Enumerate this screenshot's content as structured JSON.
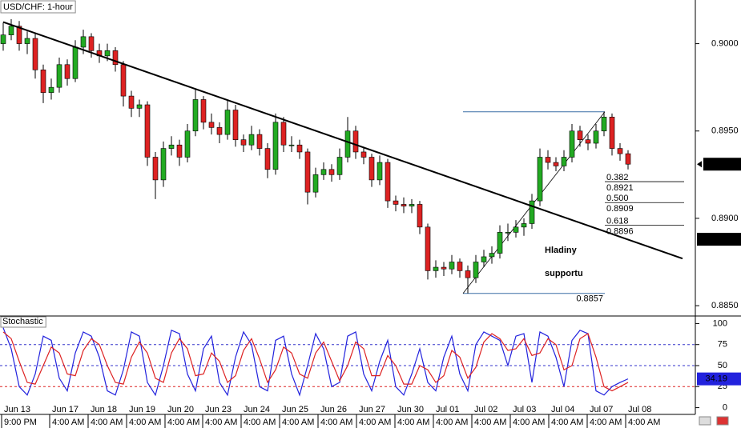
{
  "chart_data": [
    {
      "type": "candlestick",
      "title": "USD/CHF: 1-hour",
      "xlim": [
        -0.4,
        86.4
      ],
      "ylim": [
        0.8845,
        0.9025
      ],
      "yticks": [
        {
          "value": 0.885,
          "label": "0.8850"
        },
        {
          "value": 0.89,
          "label": "0.8900"
        },
        {
          "value": 0.895,
          "label": "0.8950"
        },
        {
          "value": 0.9,
          "label": "0.9000"
        }
      ],
      "up_color": "#22aa22",
      "down_color": "#dd2222",
      "ohlc": [
        [
          0.9,
          0.9012,
          0.8996,
          0.9005
        ],
        [
          0.9005,
          0.9014,
          0.9002,
          0.901
        ],
        [
          0.901,
          0.9013,
          0.8996,
          0.9
        ],
        [
          0.9,
          0.9007,
          0.8994,
          0.9003
        ],
        [
          0.9003,
          0.9006,
          0.898,
          0.8985
        ],
        [
          0.8985,
          0.8988,
          0.8966,
          0.8972
        ],
        [
          0.8972,
          0.898,
          0.8968,
          0.8975
        ],
        [
          0.8975,
          0.8992,
          0.8972,
          0.8988
        ],
        [
          0.8988,
          0.8991,
          0.8976,
          0.898
        ],
        [
          0.898,
          0.9002,
          0.8978,
          0.8998
        ],
        [
          0.8998,
          0.9008,
          0.8994,
          0.9004
        ],
        [
          0.9004,
          0.9006,
          0.8992,
          0.8996
        ],
        [
          0.8996,
          0.9,
          0.8989,
          0.8993
        ],
        [
          0.8993,
          0.9,
          0.899,
          0.8996
        ],
        [
          0.8996,
          0.8998,
          0.8984,
          0.8988
        ],
        [
          0.8988,
          0.899,
          0.8964,
          0.897
        ],
        [
          0.897,
          0.8973,
          0.8958,
          0.8963
        ],
        [
          0.8963,
          0.8968,
          0.8958,
          0.8965
        ],
        [
          0.8965,
          0.8967,
          0.893,
          0.8935
        ],
        [
          0.8935,
          0.8938,
          0.8911,
          0.8922
        ],
        [
          0.8922,
          0.8944,
          0.8918,
          0.894
        ],
        [
          0.894,
          0.8947,
          0.8936,
          0.8942
        ],
        [
          0.8942,
          0.8945,
          0.893,
          0.8935
        ],
        [
          0.8935,
          0.8954,
          0.8932,
          0.895
        ],
        [
          0.895,
          0.8974,
          0.8947,
          0.8968
        ],
        [
          0.8968,
          0.897,
          0.8951,
          0.8955
        ],
        [
          0.8955,
          0.896,
          0.8948,
          0.8952
        ],
        [
          0.8952,
          0.8955,
          0.8943,
          0.8948
        ],
        [
          0.8948,
          0.8968,
          0.8945,
          0.8962
        ],
        [
          0.8962,
          0.8965,
          0.8941,
          0.8945
        ],
        [
          0.8945,
          0.8948,
          0.8938,
          0.8942
        ],
        [
          0.8942,
          0.8953,
          0.8939,
          0.8948
        ],
        [
          0.8948,
          0.8951,
          0.8936,
          0.894
        ],
        [
          0.894,
          0.8943,
          0.8923,
          0.8928
        ],
        [
          0.8928,
          0.896,
          0.8925,
          0.8955
        ],
        [
          0.8955,
          0.8958,
          0.8938,
          0.8942
        ],
        [
          0.8942,
          0.8947,
          0.8938,
          0.8942
        ],
        [
          0.8942,
          0.8945,
          0.8934,
          0.8938
        ],
        [
          0.8938,
          0.894,
          0.8908,
          0.8915
        ],
        [
          0.8915,
          0.8929,
          0.8912,
          0.8925
        ],
        [
          0.8925,
          0.8932,
          0.8922,
          0.8928
        ],
        [
          0.8928,
          0.8931,
          0.8921,
          0.8925
        ],
        [
          0.8925,
          0.894,
          0.8922,
          0.8935
        ],
        [
          0.8935,
          0.8958,
          0.8932,
          0.895
        ],
        [
          0.895,
          0.8953,
          0.8934,
          0.8938
        ],
        [
          0.8938,
          0.8941,
          0.8931,
          0.8935
        ],
        [
          0.8935,
          0.8937,
          0.8918,
          0.8922
        ],
        [
          0.8922,
          0.8936,
          0.8919,
          0.8932
        ],
        [
          0.8932,
          0.8934,
          0.8906,
          0.891
        ],
        [
          0.891,
          0.8913,
          0.8904,
          0.8908
        ],
        [
          0.8908,
          0.8912,
          0.8903,
          0.8907
        ],
        [
          0.8907,
          0.8911,
          0.8903,
          0.8908
        ],
        [
          0.8908,
          0.891,
          0.8891,
          0.8895
        ],
        [
          0.8895,
          0.8897,
          0.8865,
          0.887
        ],
        [
          0.887,
          0.8876,
          0.8866,
          0.8872
        ],
        [
          0.8872,
          0.8875,
          0.8867,
          0.8871
        ],
        [
          0.8871,
          0.8879,
          0.8868,
          0.8875
        ],
        [
          0.8875,
          0.8877,
          0.8866,
          0.887
        ],
        [
          0.887,
          0.8873,
          0.8857,
          0.8866
        ],
        [
          0.8866,
          0.8879,
          0.8863,
          0.8875
        ],
        [
          0.8875,
          0.8882,
          0.8872,
          0.8878
        ],
        [
          0.8878,
          0.8884,
          0.8874,
          0.888
        ],
        [
          0.888,
          0.8896,
          0.8877,
          0.8892
        ],
        [
          0.8892,
          0.8897,
          0.8887,
          0.8892
        ],
        [
          0.8892,
          0.8899,
          0.8889,
          0.8895
        ],
        [
          0.8895,
          0.89,
          0.889,
          0.8897
        ],
        [
          0.8897,
          0.8914,
          0.8894,
          0.891
        ],
        [
          0.891,
          0.894,
          0.8907,
          0.8935
        ],
        [
          0.8935,
          0.8939,
          0.8928,
          0.8932
        ],
        [
          0.8932,
          0.8935,
          0.8927,
          0.893
        ],
        [
          0.893,
          0.8939,
          0.8927,
          0.8935
        ],
        [
          0.8935,
          0.8954,
          0.8932,
          0.895
        ],
        [
          0.895,
          0.8953,
          0.8941,
          0.8945
        ],
        [
          0.8945,
          0.8948,
          0.8939,
          0.8943
        ],
        [
          0.8943,
          0.8954,
          0.894,
          0.895
        ],
        [
          0.895,
          0.8961,
          0.8947,
          0.8958
        ],
        [
          0.8958,
          0.896,
          0.8936,
          0.894
        ],
        [
          0.894,
          0.8943,
          0.8933,
          0.8937
        ],
        [
          0.8937,
          0.8939,
          0.8928,
          0.8931
        ]
      ],
      "trendline": {
        "x": [
          0,
          84.8
        ],
        "y": [
          0.90124,
          0.8877
        ],
        "color": "#000000"
      },
      "swing": {
        "x": [
          57.4,
          75.1
        ],
        "low": 0.8857,
        "high": 0.8961,
        "color": "#3a6ea5"
      },
      "fib_x": [
        75.1,
        85.0
      ],
      "fib_levels": [
        {
          "ratio": "0.382",
          "value": 0.8921
        },
        {
          "ratio": "0.500",
          "value": 0.8909
        },
        {
          "ratio": "0.618",
          "value": 0.8896
        }
      ],
      "annotation": [
        "Hladiny",
        "supportu"
      ],
      "last_price": 0.8931,
      "trendline_price": 0.8888
    },
    {
      "type": "line",
      "title": "Stochastic",
      "xlim": [
        -0.4,
        86.4
      ],
      "ylim": [
        -8,
        108
      ],
      "yticks": [
        100,
        75,
        50,
        25,
        0
      ],
      "levels": [
        {
          "value": 75,
          "color": "#3333cc"
        },
        {
          "value": 50,
          "color": "#3333cc"
        },
        {
          "value": 25,
          "color": "#dd2222"
        }
      ],
      "xticks": [
        {
          "value": -0.2,
          "label": "Jun 13",
          "time": "9:00 PM"
        },
        {
          "value": 5.8,
          "label": "Jun 17",
          "time": "4:00 AM"
        },
        {
          "value": 10.6,
          "label": "Jun 18",
          "time": "4:00 AM"
        },
        {
          "value": 15.4,
          "label": "Jun 19",
          "time": "4:00 AM"
        },
        {
          "value": 20.2,
          "label": "Jun 20",
          "time": "4:00 AM"
        },
        {
          "value": 24.9,
          "label": "Jun 23",
          "time": "4:00 AM"
        },
        {
          "value": 29.7,
          "label": "Jun 24",
          "time": "4:00 AM"
        },
        {
          "value": 34.5,
          "label": "Jun 25",
          "time": "4:00 AM"
        },
        {
          "value": 39.3,
          "label": "Jun 26",
          "time": "4:00 AM"
        },
        {
          "value": 44.1,
          "label": "Jun 27",
          "time": "4:00 AM"
        },
        {
          "value": 48.9,
          "label": "Jun 30",
          "time": "4:00 AM"
        },
        {
          "value": 53.7,
          "label": "Jul 01",
          "time": "4:00 AM"
        },
        {
          "value": 58.5,
          "label": "Jul 02",
          "time": "4:00 AM"
        },
        {
          "value": 63.3,
          "label": "Jul 03",
          "time": "4:00 AM"
        },
        {
          "value": 68.1,
          "label": "Jul 04",
          "time": "4:00 AM"
        },
        {
          "value": 72.9,
          "label": "Jul 07",
          "time": "4:00 AM"
        },
        {
          "value": 77.7,
          "label": "Jul 08",
          "time": "4:00 AM"
        }
      ],
      "series": [
        {
          "color": "#2222dd",
          "values": [
            95,
            70,
            25,
            15,
            40,
            85,
            80,
            35,
            20,
            65,
            90,
            85,
            60,
            20,
            15,
            45,
            90,
            85,
            30,
            15,
            50,
            92,
            88,
            40,
            20,
            70,
            85,
            30,
            15,
            60,
            90,
            75,
            25,
            20,
            80,
            85,
            40,
            15,
            50,
            88,
            70,
            25,
            30,
            85,
            90,
            40,
            20,
            55,
            80,
            25,
            15,
            40,
            70,
            30,
            20,
            60,
            85,
            40,
            20,
            75,
            90,
            85,
            80,
            50,
            85,
            88,
            30,
            90,
            85,
            60,
            25,
            80,
            92,
            88,
            20,
            15,
            25,
            30,
            34.19
          ]
        },
        {
          "color": "#dd2222",
          "values": [
            90,
            82,
            55,
            30,
            28,
            50,
            72,
            65,
            40,
            38,
            68,
            82,
            75,
            50,
            30,
            28,
            60,
            78,
            65,
            35,
            30,
            65,
            82,
            70,
            38,
            40,
            65,
            55,
            30,
            38,
            68,
            82,
            58,
            30,
            45,
            72,
            65,
            40,
            35,
            65,
            78,
            55,
            32,
            50,
            78,
            70,
            38,
            38,
            62,
            50,
            28,
            28,
            50,
            45,
            30,
            38,
            68,
            60,
            35,
            48,
            78,
            88,
            82,
            68,
            70,
            82,
            62,
            65,
            82,
            75,
            45,
            50,
            82,
            88,
            60,
            25,
            20,
            25,
            30
          ]
        }
      ]
    }
  ]
}
